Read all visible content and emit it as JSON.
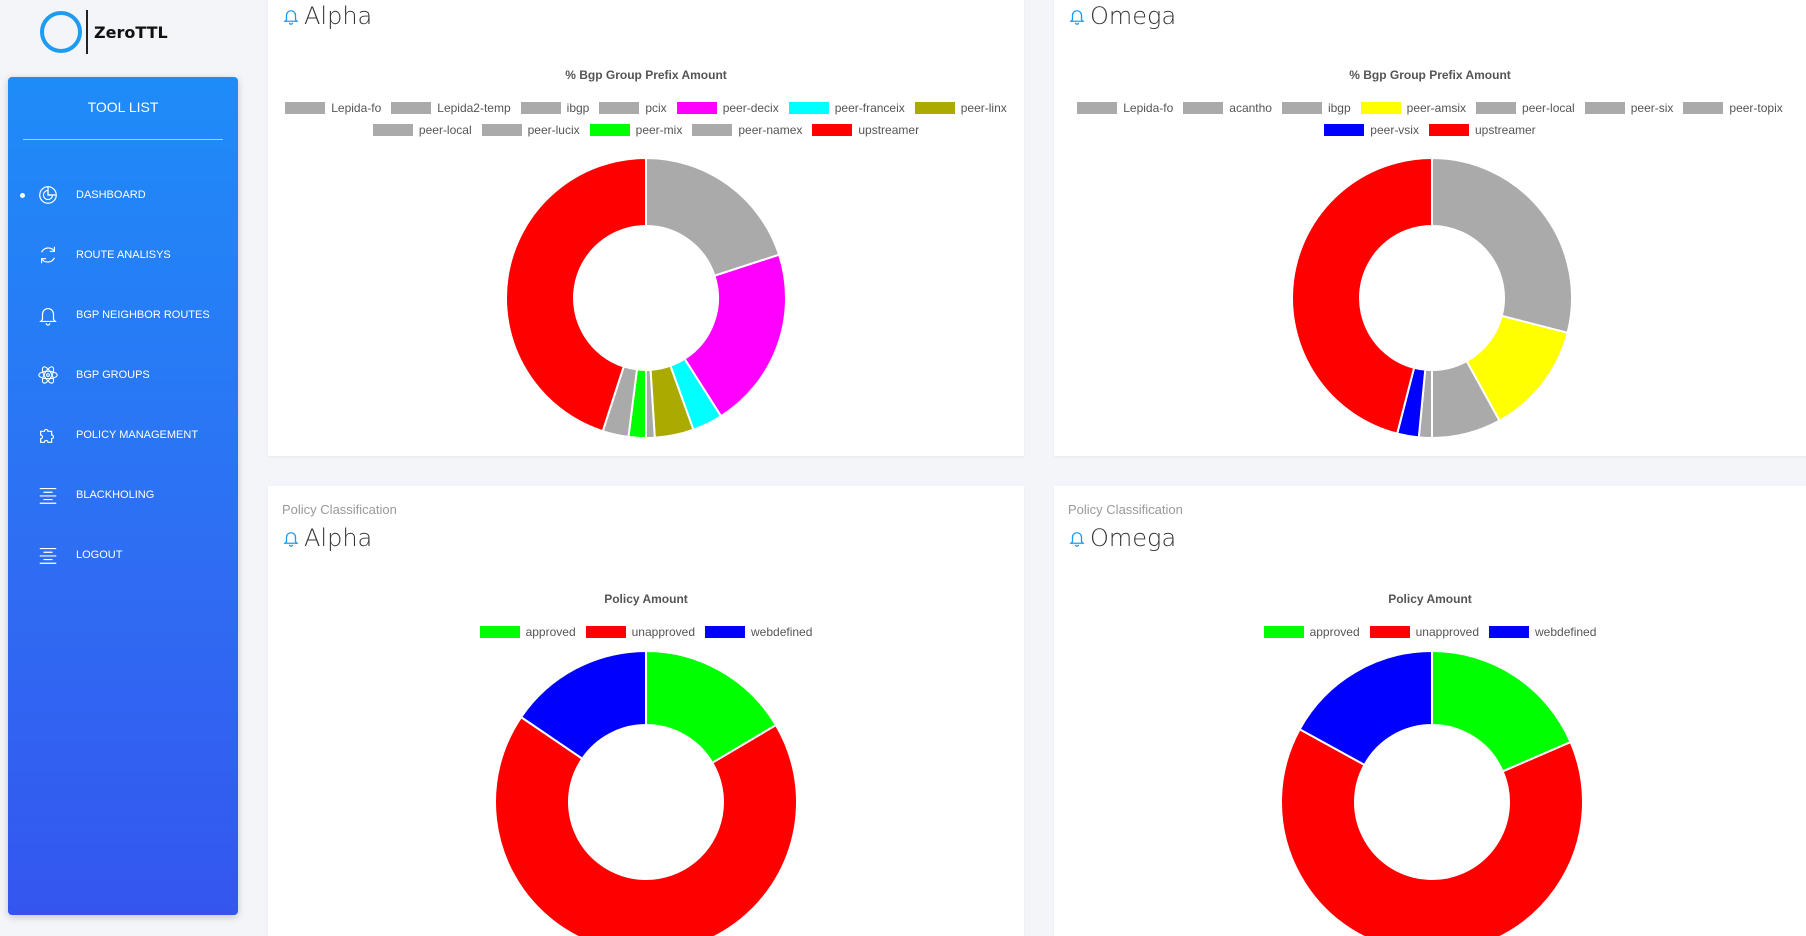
{
  "app": {
    "logo_text": "ZeroTTL"
  },
  "sidebar": {
    "title": "TOOL LIST",
    "items": [
      {
        "label": "DASHBOARD",
        "icon": "pie-chart-icon",
        "active": true
      },
      {
        "label": "ROUTE ANALISYS",
        "icon": "refresh-icon",
        "active": false
      },
      {
        "label": "BGP NEIGHBOR ROUTES",
        "icon": "bell-icon",
        "active": false
      },
      {
        "label": "BGP GROUPS",
        "icon": "atom-icon",
        "active": false
      },
      {
        "label": "POLICY MANAGEMENT",
        "icon": "puzzle-icon",
        "active": false
      },
      {
        "label": "BLACKHOLING",
        "icon": "align-center-icon",
        "active": false
      },
      {
        "label": "LOGOUT",
        "icon": "align-center-icon",
        "active": false
      }
    ]
  },
  "cards": [
    {
      "subtitle": "",
      "title": "Alpha",
      "chart_data": {
        "type": "pie",
        "title": "% Bgp Group Prefix Amount",
        "legend_rows": [
          [
            "Lepida-fo",
            "Lepida2-temp",
            "ibgp",
            "pcix",
            "peer-decix",
            "peer-franceix",
            "peer-linx"
          ],
          [
            "peer-local",
            "peer-lucix",
            "peer-mix",
            "peer-namex",
            "upstreamer"
          ]
        ],
        "categories": [
          "Lepida-fo",
          "Lepida2-temp",
          "ibgp",
          "pcix",
          "peer-decix",
          "peer-franceix",
          "peer-linx",
          "peer-local",
          "peer-lucix",
          "peer-mix",
          "peer-namex",
          "upstreamer"
        ],
        "values": [
          20.0,
          0.0,
          0.0,
          0.0,
          21.0,
          3.5,
          4.5,
          0.0,
          1.0,
          2.0,
          3.0,
          45.0
        ],
        "colors": [
          "#aaaaaa",
          "#aaaaaa",
          "#aaaaaa",
          "#aaaaaa",
          "#ff00ff",
          "#00ffff",
          "#aaaa00",
          "#aaaaaa",
          "#aaaaaa",
          "#00ff00",
          "#aaaaaa",
          "#ff0000"
        ],
        "legend_position": "top"
      }
    },
    {
      "subtitle": "",
      "title": "Omega",
      "chart_data": {
        "type": "pie",
        "title": "% Bgp Group Prefix Amount",
        "legend_rows": [
          [
            "Lepida-fo",
            "acantho",
            "ibgp",
            "peer-amsix",
            "peer-local",
            "peer-six",
            "peer-topix"
          ],
          [
            "peer-vsix",
            "upstreamer"
          ]
        ],
        "categories": [
          "Lepida-fo",
          "acantho",
          "ibgp",
          "peer-amsix",
          "peer-local",
          "peer-six",
          "peer-topix",
          "peer-vsix",
          "upstreamer"
        ],
        "values": [
          29.0,
          0.0,
          0.0,
          13.0,
          8.0,
          1.5,
          0.0,
          2.5,
          46.0
        ],
        "colors": [
          "#aaaaaa",
          "#aaaaaa",
          "#aaaaaa",
          "#ffff00",
          "#aaaaaa",
          "#aaaaaa",
          "#aaaaaa",
          "#0000ff",
          "#ff0000"
        ],
        "legend_position": "top"
      }
    },
    {
      "subtitle": "Policy Classification",
      "title": "Alpha",
      "chart_data": {
        "type": "pie",
        "title": "Policy Amount",
        "legend_rows": [
          [
            "approved",
            "unapproved",
            "webdefined"
          ]
        ],
        "categories": [
          "approved",
          "unapproved",
          "webdefined"
        ],
        "values": [
          16.5,
          68.0,
          15.5
        ],
        "colors": [
          "#00ff00",
          "#ff0000",
          "#0000ff"
        ],
        "legend_position": "top"
      }
    },
    {
      "subtitle": "Policy Classification",
      "title": "Omega",
      "chart_data": {
        "type": "pie",
        "title": "Policy Amount",
        "legend_rows": [
          [
            "approved",
            "unapproved",
            "webdefined"
          ]
        ],
        "categories": [
          "approved",
          "unapproved",
          "webdefined"
        ],
        "values": [
          18.5,
          64.5,
          17.0
        ],
        "colors": [
          "#00ff00",
          "#ff0000",
          "#0000ff"
        ],
        "legend_position": "top"
      }
    }
  ]
}
